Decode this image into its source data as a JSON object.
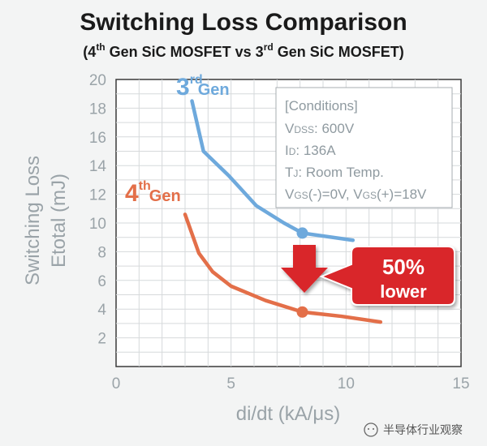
{
  "chart_data": {
    "type": "line",
    "title": "Switching Loss Comparison",
    "subtitle": {
      "open": "(4",
      "sup1": "th",
      "mid": " Gen SiC MOSFET vs 3",
      "sup2": "rd",
      "end": " Gen SiC MOSFET)"
    },
    "xlabel": "di/dt (kA/μs)",
    "ylabel_line1": "Switching Loss",
    "ylabel_line2": "Etotal (mJ)",
    "xlim": [
      0,
      15
    ],
    "ylim": [
      0,
      20
    ],
    "x_ticks": [
      "0",
      "5",
      "10",
      "15"
    ],
    "x_tick_values": [
      0,
      5,
      10,
      15
    ],
    "y_ticks": [
      "2",
      "4",
      "6",
      "8",
      "10",
      "12",
      "14",
      "16",
      "18",
      "20"
    ],
    "y_tick_values": [
      2,
      4,
      6,
      8,
      10,
      12,
      14,
      16,
      18,
      20
    ],
    "grid": true,
    "series": [
      {
        "label_main": "3",
        "label_sup": "rd",
        "label_gen": "Gen",
        "color": "#6ea9dc",
        "x": [
          3.3,
          3.8,
          4.9,
          6.1,
          7.3,
          8.1,
          10.3
        ],
        "y": [
          18.5,
          15.0,
          13.3,
          11.2,
          10.0,
          9.3,
          8.8
        ],
        "highlight_x": 8.1,
        "highlight_y": 9.3
      },
      {
        "label_main": "4",
        "label_sup": "th",
        "label_gen": "Gen",
        "color": "#e36f49",
        "x": [
          3.0,
          3.6,
          4.2,
          5.0,
          6.5,
          8.1,
          9.8,
          11.5
        ],
        "y": [
          10.6,
          7.9,
          6.6,
          5.6,
          4.6,
          3.8,
          3.5,
          3.1
        ],
        "highlight_x": 8.1,
        "highlight_y": 3.8
      }
    ],
    "conditions": {
      "line1": "[Conditions]",
      "vdss_main": "V",
      "vdss_sub": "DSS",
      "vdss_val": ": 600V",
      "id_main": "I",
      "id_sub": "D",
      "id_val": ": 136A",
      "tj_main": "T",
      "tj_sub": "J",
      "tj_val": ": Room Temp.",
      "vgs_main1": "V",
      "vgs_sub1": "GS",
      "vgs_val1": "(-)=0V, ",
      "vgs_main2": "V",
      "vgs_sub2": "GS",
      "vgs_val2": "(+)=18V"
    },
    "callout": {
      "percent": "50%",
      "text": "lower",
      "color": "#d9262c"
    }
  },
  "watermark": {
    "text": "半导体行业观察"
  }
}
